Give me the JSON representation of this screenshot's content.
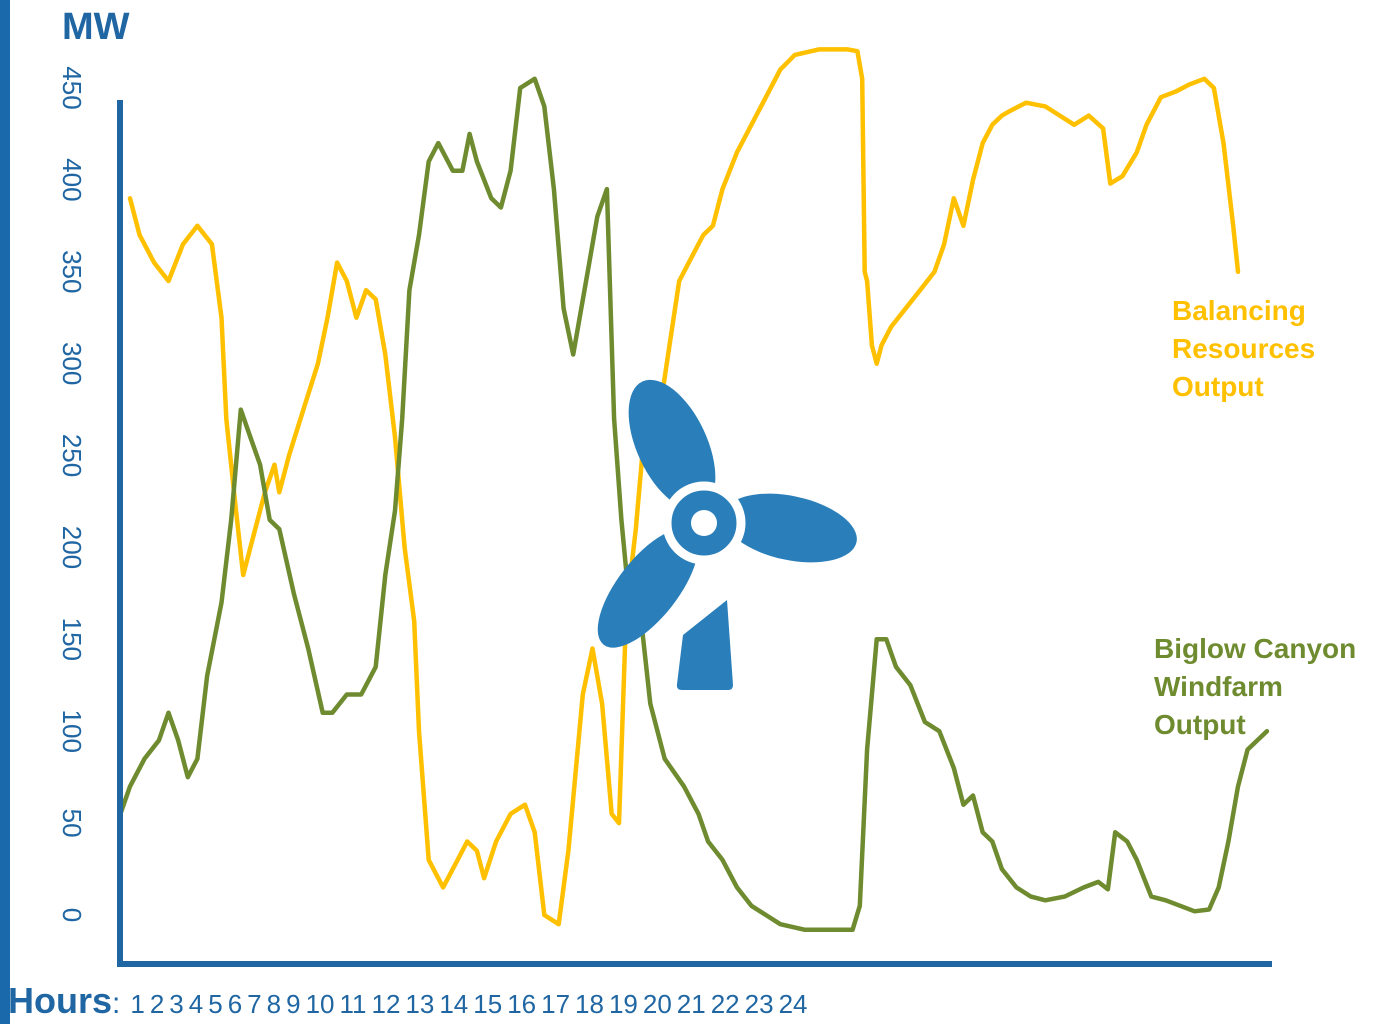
{
  "chart_data": {
    "type": "line",
    "unit_label": "MW",
    "x_label": "Hours",
    "x_separator": ":",
    "x_ticks": [
      "1",
      "2",
      "3",
      "4",
      "5",
      "6",
      "7",
      "8",
      "9",
      "10",
      "11",
      "12",
      "13",
      "14",
      "15",
      "16",
      "17",
      "18",
      "19",
      "20",
      "21",
      "22",
      "23",
      "24"
    ],
    "y_ticks": [
      0,
      50,
      100,
      150,
      200,
      250,
      300,
      350,
      400,
      450
    ],
    "ylim": [
      0,
      450
    ],
    "xlim": [
      1,
      24
    ],
    "grid": false,
    "series": [
      {
        "name": "Balancing Resources Output",
        "label_lines": [
          "Balancing",
          "Resources",
          "Output"
        ],
        "color": "#ffc000",
        "points": [
          [
            1.0,
            390
          ],
          [
            1.2,
            370
          ],
          [
            1.5,
            355
          ],
          [
            1.8,
            345
          ],
          [
            2.1,
            365
          ],
          [
            2.4,
            375
          ],
          [
            2.7,
            365
          ],
          [
            2.9,
            325
          ],
          [
            3.0,
            270
          ],
          [
            3.2,
            220
          ],
          [
            3.35,
            185
          ],
          [
            3.55,
            205
          ],
          [
            3.8,
            230
          ],
          [
            4.0,
            245
          ],
          [
            4.1,
            230
          ],
          [
            4.3,
            250
          ],
          [
            4.6,
            275
          ],
          [
            4.9,
            300
          ],
          [
            5.1,
            325
          ],
          [
            5.3,
            355
          ],
          [
            5.5,
            345
          ],
          [
            5.7,
            325
          ],
          [
            5.9,
            340
          ],
          [
            6.1,
            335
          ],
          [
            6.3,
            305
          ],
          [
            6.5,
            260
          ],
          [
            6.7,
            200
          ],
          [
            6.9,
            160
          ],
          [
            7.0,
            100
          ],
          [
            7.2,
            30
          ],
          [
            7.5,
            15
          ],
          [
            7.8,
            30
          ],
          [
            8.0,
            40
          ],
          [
            8.2,
            35
          ],
          [
            8.35,
            20
          ],
          [
            8.6,
            40
          ],
          [
            8.9,
            55
          ],
          [
            9.2,
            60
          ],
          [
            9.4,
            45
          ],
          [
            9.6,
            0
          ],
          [
            9.9,
            -5
          ],
          [
            10.1,
            35
          ],
          [
            10.4,
            120
          ],
          [
            10.6,
            145
          ],
          [
            10.8,
            115
          ],
          [
            11.0,
            55
          ],
          [
            11.15,
            50
          ],
          [
            11.3,
            165
          ],
          [
            11.5,
            210
          ],
          [
            11.7,
            270
          ],
          [
            12.0,
            275
          ],
          [
            12.2,
            310
          ],
          [
            12.4,
            345
          ],
          [
            12.7,
            360
          ],
          [
            12.9,
            370
          ],
          [
            13.1,
            375
          ],
          [
            13.3,
            395
          ],
          [
            13.6,
            415
          ],
          [
            13.9,
            430
          ],
          [
            14.2,
            445
          ],
          [
            14.5,
            460
          ],
          [
            14.8,
            468
          ],
          [
            15.3,
            471
          ],
          [
            15.9,
            471
          ],
          [
            16.1,
            470
          ],
          [
            16.2,
            455
          ],
          [
            16.25,
            350
          ],
          [
            16.3,
            345
          ],
          [
            16.4,
            310
          ],
          [
            16.5,
            300
          ],
          [
            16.6,
            310
          ],
          [
            16.8,
            320
          ],
          [
            17.1,
            330
          ],
          [
            17.4,
            340
          ],
          [
            17.7,
            350
          ],
          [
            17.9,
            365
          ],
          [
            18.1,
            390
          ],
          [
            18.3,
            375
          ],
          [
            18.5,
            400
          ],
          [
            18.7,
            420
          ],
          [
            18.9,
            430
          ],
          [
            19.1,
            435
          ],
          [
            19.3,
            438
          ],
          [
            19.6,
            442
          ],
          [
            20.0,
            440
          ],
          [
            20.3,
            435
          ],
          [
            20.6,
            430
          ],
          [
            20.9,
            435
          ],
          [
            21.2,
            428
          ],
          [
            21.35,
            398
          ],
          [
            21.6,
            402
          ],
          [
            21.9,
            415
          ],
          [
            22.1,
            430
          ],
          [
            22.4,
            445
          ],
          [
            22.7,
            448
          ],
          [
            23.0,
            452
          ],
          [
            23.3,
            455
          ],
          [
            23.5,
            450
          ],
          [
            23.7,
            420
          ],
          [
            23.9,
            375
          ],
          [
            24.0,
            350
          ]
        ]
      },
      {
        "name": "Biglow Canyon Windfarm Output",
        "label_lines": [
          "Biglow Canyon",
          "Windfarm",
          "Output"
        ],
        "color": "#6f8b30",
        "points": [
          [
            0.8,
            55
          ],
          [
            1.0,
            70
          ],
          [
            1.3,
            85
          ],
          [
            1.6,
            95
          ],
          [
            1.8,
            110
          ],
          [
            2.0,
            95
          ],
          [
            2.2,
            75
          ],
          [
            2.4,
            85
          ],
          [
            2.6,
            130
          ],
          [
            2.9,
            170
          ],
          [
            3.1,
            215
          ],
          [
            3.3,
            275
          ],
          [
            3.5,
            260
          ],
          [
            3.7,
            245
          ],
          [
            3.9,
            215
          ],
          [
            4.1,
            210
          ],
          [
            4.4,
            175
          ],
          [
            4.7,
            145
          ],
          [
            5.0,
            110
          ],
          [
            5.2,
            110
          ],
          [
            5.5,
            120
          ],
          [
            5.8,
            120
          ],
          [
            6.1,
            135
          ],
          [
            6.3,
            185
          ],
          [
            6.5,
            220
          ],
          [
            6.65,
            270
          ],
          [
            6.8,
            340
          ],
          [
            7.0,
            370
          ],
          [
            7.2,
            410
          ],
          [
            7.4,
            420
          ],
          [
            7.7,
            405
          ],
          [
            7.9,
            405
          ],
          [
            8.05,
            425
          ],
          [
            8.2,
            410
          ],
          [
            8.5,
            390
          ],
          [
            8.7,
            385
          ],
          [
            8.9,
            405
          ],
          [
            9.1,
            450
          ],
          [
            9.4,
            455
          ],
          [
            9.6,
            440
          ],
          [
            9.8,
            395
          ],
          [
            10.0,
            330
          ],
          [
            10.2,
            305
          ],
          [
            10.5,
            350
          ],
          [
            10.7,
            380
          ],
          [
            10.9,
            395
          ],
          [
            11.05,
            270
          ],
          [
            11.2,
            215
          ],
          [
            11.4,
            160
          ],
          [
            11.55,
            175
          ],
          [
            11.8,
            115
          ],
          [
            12.1,
            85
          ],
          [
            12.5,
            70
          ],
          [
            12.8,
            55
          ],
          [
            13.0,
            40
          ],
          [
            13.3,
            30
          ],
          [
            13.6,
            15
          ],
          [
            13.9,
            5
          ],
          [
            14.2,
            0
          ],
          [
            14.5,
            -5
          ],
          [
            15.0,
            -8
          ],
          [
            15.5,
            -8
          ],
          [
            16.0,
            -8
          ],
          [
            16.15,
            5
          ],
          [
            16.3,
            90
          ],
          [
            16.5,
            150
          ],
          [
            16.7,
            150
          ],
          [
            16.9,
            135
          ],
          [
            17.2,
            125
          ],
          [
            17.5,
            105
          ],
          [
            17.8,
            100
          ],
          [
            18.1,
            80
          ],
          [
            18.3,
            60
          ],
          [
            18.5,
            65
          ],
          [
            18.7,
            45
          ],
          [
            18.9,
            40
          ],
          [
            19.1,
            25
          ],
          [
            19.4,
            15
          ],
          [
            19.7,
            10
          ],
          [
            20.0,
            8
          ],
          [
            20.4,
            10
          ],
          [
            20.8,
            15
          ],
          [
            21.1,
            18
          ],
          [
            21.3,
            14
          ],
          [
            21.45,
            45
          ],
          [
            21.7,
            40
          ],
          [
            21.9,
            30
          ],
          [
            22.2,
            10
          ],
          [
            22.5,
            8
          ],
          [
            22.8,
            5
          ],
          [
            23.1,
            2
          ],
          [
            23.4,
            3
          ],
          [
            23.6,
            15
          ],
          [
            23.8,
            40
          ],
          [
            24.0,
            70
          ],
          [
            24.2,
            90
          ],
          [
            24.4,
            95
          ],
          [
            24.6,
            100
          ]
        ]
      }
    ]
  },
  "icon": {
    "name": "wind-turbine-icon",
    "color": "#2a7fba"
  },
  "colors": {
    "axis": "#1f66a3",
    "left_bar": "#1a6aab"
  }
}
